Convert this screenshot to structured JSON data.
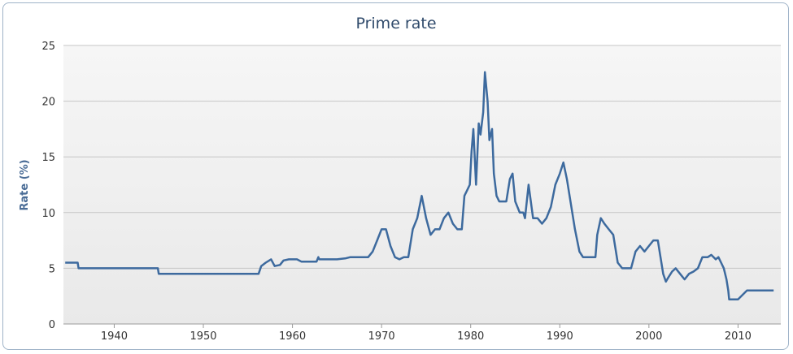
{
  "chart_data": {
    "type": "line",
    "title": "Prime rate",
    "xlabel": "",
    "ylabel": "Rate (%)",
    "xlim": [
      1934.3,
      2014.8
    ],
    "ylim": [
      0,
      25
    ],
    "x_ticks": [
      "1940",
      "1950",
      "1960",
      "1970",
      "1980",
      "1990",
      "2000",
      "2010"
    ],
    "y_ticks": [
      "0",
      "5",
      "10",
      "15",
      "20",
      "25"
    ],
    "grid": "horizontal",
    "legend": "none",
    "line_color": "#3d6a9e",
    "series": [
      {
        "x": [
          1934.5,
          1935.9,
          1936.0,
          1944.9,
          1945.0,
          1956.2,
          1956.5,
          1957.0,
          1957.6,
          1958.0,
          1958.6,
          1959.0,
          1959.6,
          1960.0,
          1960.5,
          1961.0,
          1962.0,
          1962.7,
          1962.9,
          1963.0,
          1964.0,
          1965.0,
          1966.0,
          1966.5,
          1967.0,
          1968.0,
          1968.5,
          1969.0,
          1969.5,
          1970.0,
          1970.5,
          1971.0,
          1971.5,
          1972.0,
          1972.5,
          1973.0,
          1973.5,
          1974.0,
          1974.5,
          1975.0,
          1975.5,
          1976.0,
          1976.5,
          1977.0,
          1977.5,
          1978.0,
          1978.5,
          1979.0,
          1979.3,
          1979.6,
          1979.9,
          1980.1,
          1980.3,
          1980.6,
          1980.9,
          1981.1,
          1981.4,
          1981.6,
          1981.9,
          1982.1,
          1982.4,
          1982.6,
          1982.9,
          1983.2,
          1983.6,
          1984.0,
          1984.4,
          1984.7,
          1985.0,
          1985.5,
          1985.9,
          1986.1,
          1986.5,
          1987.0,
          1987.5,
          1988.0,
          1988.5,
          1989.0,
          1989.5,
          1990.0,
          1990.4,
          1990.8,
          1991.3,
          1991.7,
          1992.2,
          1992.6,
          1993.0,
          1993.5,
          1994.0,
          1994.2,
          1994.6,
          1995.0,
          1995.5,
          1996.0,
          1996.5,
          1997.0,
          1998.0,
          1998.5,
          1999.0,
          1999.5,
          2000.0,
          2000.5,
          2001.0,
          2001.3,
          2001.6,
          2001.9,
          2002.2,
          2002.6,
          2003.0,
          2003.5,
          2004.0,
          2004.5,
          2005.0,
          2005.5,
          2006.0,
          2006.6,
          2007.0,
          2007.5,
          2007.8,
          2008.1,
          2008.4,
          2008.7,
          2008.9,
          2009.0,
          2010.0,
          2011.0,
          2012.0,
          2013.0,
          2014.0
        ],
        "y": [
          5.5,
          5.5,
          5.0,
          5.0,
          4.5,
          4.5,
          5.2,
          5.5,
          5.8,
          5.2,
          5.3,
          5.7,
          5.8,
          5.8,
          5.8,
          5.6,
          5.6,
          5.6,
          6.0,
          5.8,
          5.8,
          5.8,
          5.9,
          6.0,
          6.0,
          6.0,
          6.0,
          6.5,
          7.5,
          8.5,
          8.5,
          7.0,
          6.0,
          5.8,
          6.0,
          6.0,
          8.5,
          9.5,
          11.5,
          9.5,
          8.0,
          8.5,
          8.5,
          9.5,
          10.0,
          9.0,
          8.5,
          8.5,
          11.5,
          12.0,
          12.5,
          15.5,
          17.5,
          12.5,
          18.0,
          17.0,
          19.0,
          22.6,
          20.0,
          16.5,
          17.5,
          13.5,
          11.5,
          11.0,
          11.0,
          11.0,
          13.0,
          13.5,
          11.0,
          10.0,
          10.0,
          9.5,
          12.5,
          9.5,
          9.5,
          9.0,
          9.5,
          10.5,
          12.5,
          13.5,
          14.5,
          13.0,
          10.5,
          8.5,
          6.5,
          6.0,
          6.0,
          6.0,
          6.0,
          8.0,
          9.5,
          9.0,
          8.5,
          8.0,
          5.5,
          5.0,
          5.0,
          6.5,
          7.0,
          6.5,
          7.0,
          7.5,
          7.5,
          6.0,
          4.5,
          3.8,
          4.2,
          4.7,
          5.0,
          4.5,
          4.0,
          4.5,
          4.7,
          5.0,
          6.0,
          6.0,
          6.2,
          5.8,
          6.0,
          5.5,
          5.0,
          4.0,
          3.0,
          2.2,
          2.2,
          3.0,
          3.0,
          3.0,
          3.0
        ]
      }
    ]
  }
}
